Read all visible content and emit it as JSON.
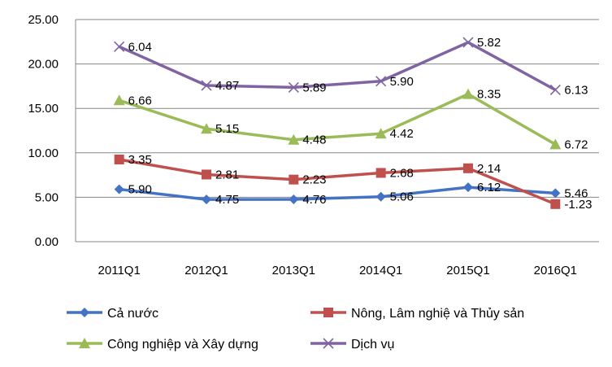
{
  "chart_data": {
    "type": "line",
    "title": "",
    "xlabel": "",
    "ylabel": "",
    "categories": [
      "2011Q1",
      "2012Q1",
      "2013Q1",
      "2014Q1",
      "2015Q1",
      "2016Q1"
    ],
    "ylim": [
      0,
      25
    ],
    "yticks": [
      "0.00",
      "5.00",
      "10.00",
      "15.00",
      "20.00",
      "25.00"
    ],
    "grid": true,
    "legend_position": "bottom",
    "series": [
      {
        "name": "Cả nước",
        "color": "#4472C4",
        "marker": "diamond",
        "values": [
          5.9,
          4.75,
          4.76,
          5.06,
          6.12,
          5.46
        ],
        "labels": [
          "5.90",
          "4.75",
          "4.76",
          "5.06",
          "6.12",
          "5.46"
        ]
      },
      {
        "name": "Nông, Lâm nghiệ và Thủy sản",
        "color": "#C0504D",
        "marker": "square",
        "values": [
          9.25,
          7.56,
          6.99,
          7.74,
          8.26,
          4.23
        ],
        "labels": [
          "3.35",
          "2.81",
          "2.23",
          "2.68",
          "2.14",
          "-1.23"
        ]
      },
      {
        "name": "Công nghiệp và Xây dựng",
        "color": "#9BBB59",
        "marker": "triangle",
        "values": [
          15.91,
          12.71,
          11.47,
          12.16,
          16.61,
          10.95
        ],
        "labels": [
          "6.66",
          "5.15",
          "4.48",
          "4.42",
          "8.35",
          "6.72"
        ]
      },
      {
        "name": "Dịch vụ",
        "color": "#8064A2",
        "marker": "x",
        "values": [
          21.95,
          17.58,
          17.36,
          18.06,
          22.43,
          17.08
        ],
        "labels": [
          "6.04",
          "4.87",
          "5.89",
          "5.90",
          "5.82",
          "6.13"
        ]
      }
    ]
  }
}
